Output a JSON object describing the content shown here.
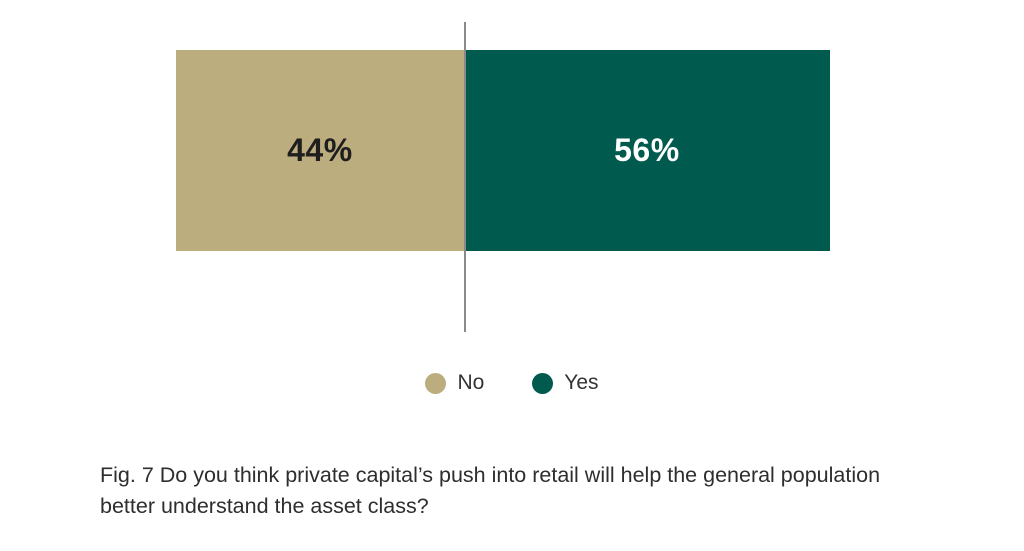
{
  "chart_data": {
    "type": "bar",
    "subtype": "100%-stacked-horizontal",
    "title": "",
    "caption": "Fig. 7 Do you think private capital’s push into retail will help the general population better understand the asset class?",
    "categories": [
      "No",
      "Yes"
    ],
    "values": [
      44,
      56
    ],
    "series": [
      {
        "name": "No",
        "value": 44,
        "label": "44%",
        "color": "#BCAD7F",
        "label_color": "#1E1E1E"
      },
      {
        "name": "Yes",
        "value": 56,
        "label": "56%",
        "color": "#005B4E",
        "label_color": "#FFFFFF"
      }
    ],
    "xlim": [
      0,
      100
    ],
    "grid": false,
    "divider_color": "#8A8A8A",
    "legend": {
      "position": "bottom",
      "items": [
        {
          "label": "No",
          "color": "#BCAD7F"
        },
        {
          "label": "Yes",
          "color": "#005B4E"
        }
      ]
    }
  }
}
